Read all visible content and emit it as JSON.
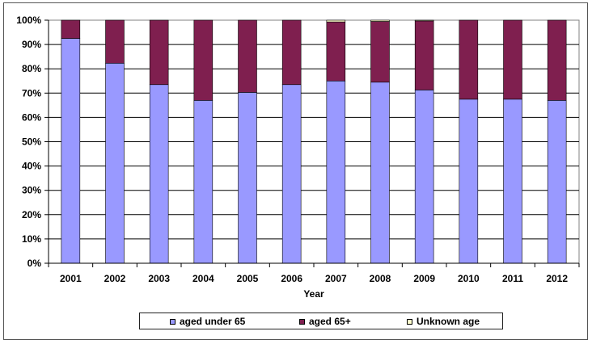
{
  "chart_data": {
    "type": "bar",
    "stacked": true,
    "title": "",
    "xlabel": "Year",
    "ylabel": "",
    "categories": [
      "2001",
      "2002",
      "2003",
      "2004",
      "2005",
      "2006",
      "2007",
      "2008",
      "2009",
      "2010",
      "2011",
      "2012"
    ],
    "series": [
      {
        "name": "aged under 65",
        "color": "#9999ff",
        "values": [
          92.5,
          82.3,
          73.5,
          67.0,
          70.3,
          73.5,
          75.0,
          74.5,
          71.3,
          67.5,
          67.5,
          67.0
        ]
      },
      {
        "name": "aged 65+",
        "color": "#7f1f4f",
        "values": [
          7.5,
          17.7,
          26.5,
          33.0,
          29.7,
          26.5,
          24.3,
          25.0,
          28.4,
          32.5,
          32.5,
          33.0
        ]
      },
      {
        "name": "Unknown age",
        "color": "#ffffcc",
        "values": [
          0,
          0,
          0,
          0,
          0,
          0,
          0.7,
          0.5,
          0.3,
          0,
          0,
          0
        ]
      }
    ],
    "ylim": [
      0,
      100
    ],
    "yticks": [
      "0%",
      "10%",
      "20%",
      "30%",
      "40%",
      "50%",
      "60%",
      "70%",
      "80%",
      "90%",
      "100%"
    ],
    "grid": true,
    "legend_position": "bottom"
  }
}
